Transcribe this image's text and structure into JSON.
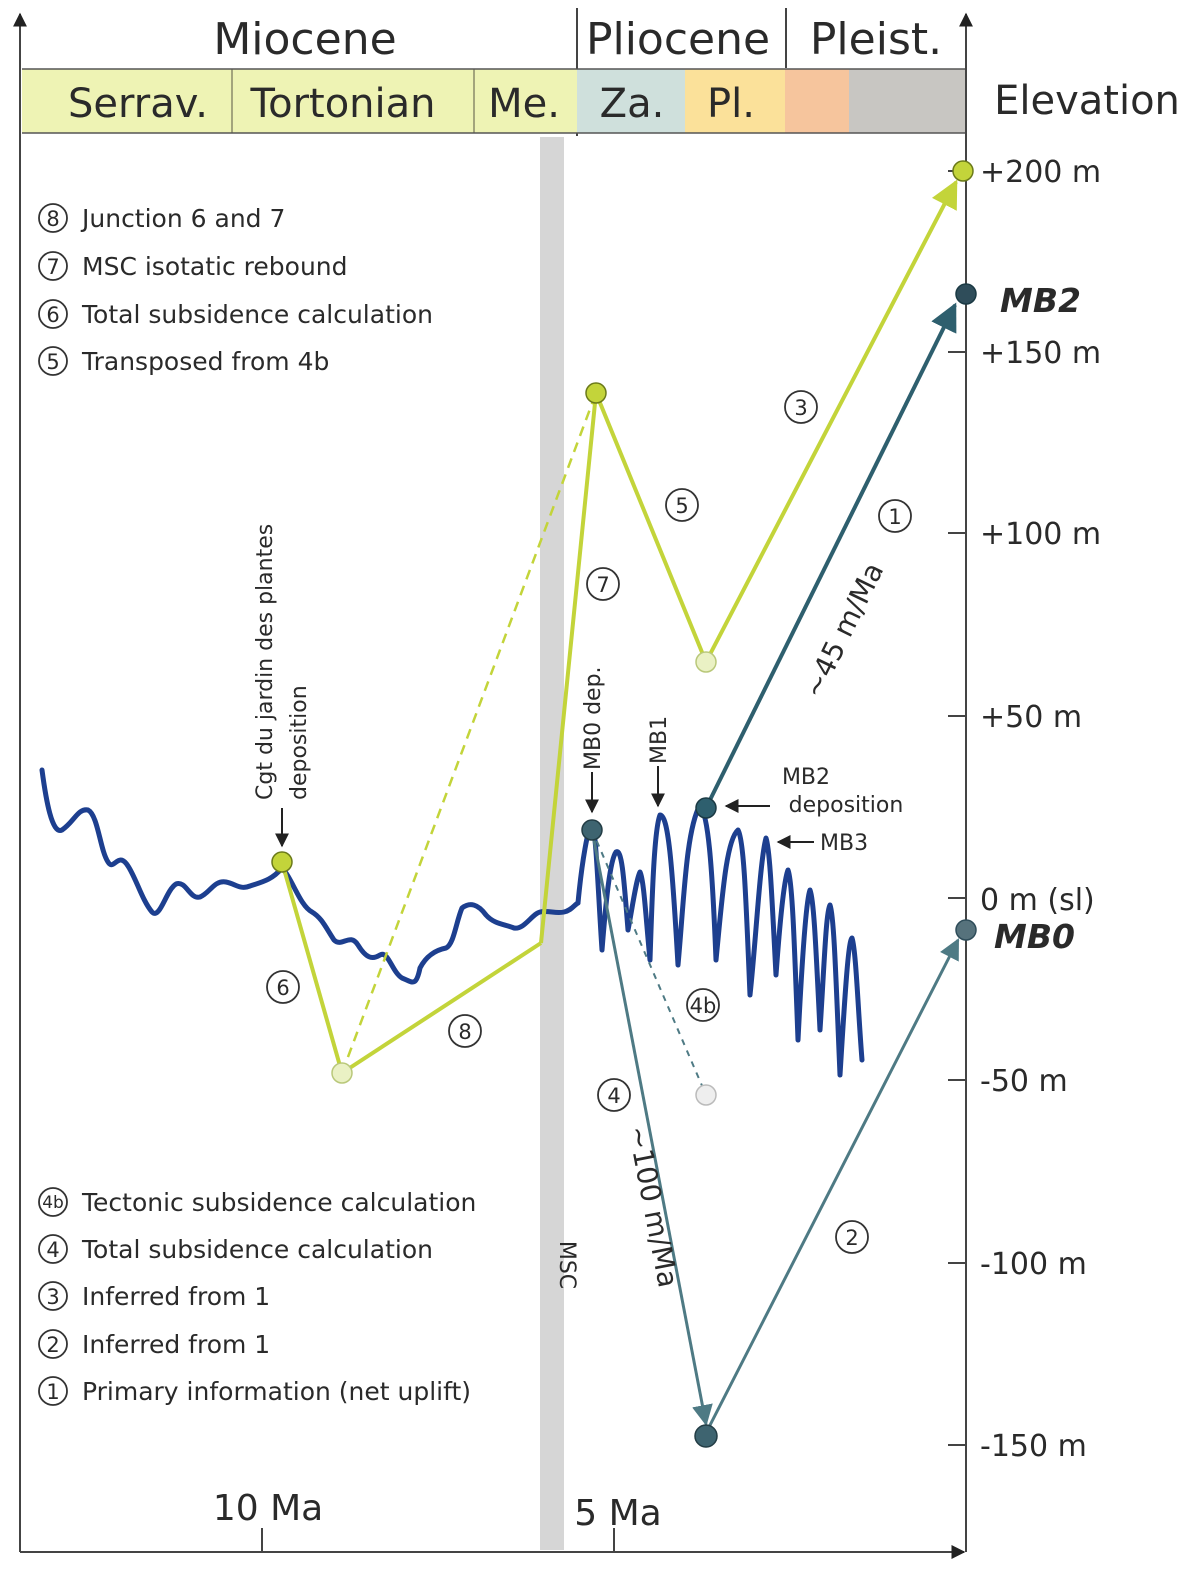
{
  "epochs": [
    {
      "label": "Miocene"
    },
    {
      "label": "Pliocene"
    },
    {
      "label": "Pleist."
    }
  ],
  "stages": [
    {
      "label": "Serrav.",
      "color": "#eef3b4"
    },
    {
      "label": "Tortonian",
      "color": "#eef3b4"
    },
    {
      "label": "Me.",
      "color": "#eef3b4"
    },
    {
      "label": "Za.",
      "color": "#cfe0dc"
    },
    {
      "label": "Pl.",
      "color": "#fbe19a"
    },
    {
      "label": "",
      "color": "#f6c59d"
    },
    {
      "label": "",
      "color": "#c8c6c2"
    }
  ],
  "elevation_header": "Elevation",
  "elevation_ticks": [
    "+200 m",
    "+150 m",
    "+100 m",
    "+50 m",
    "0 m (sl)",
    "-50 m",
    "-100 m",
    "-150 m"
  ],
  "age_labels": [
    "10 Ma",
    "5 Ma"
  ],
  "msc_label": "MSC",
  "markers": {
    "mb2": "MB2",
    "mb0": "MB0"
  },
  "legend_top": [
    {
      "num": "8",
      "text": "Junction 6 and 7"
    },
    {
      "num": "7",
      "text": "MSC isotatic rebound"
    },
    {
      "num": "6",
      "text": "Total subsidence calculation"
    },
    {
      "num": "5",
      "text": "Transposed from 4b"
    }
  ],
  "legend_bottom": [
    {
      "num": "4b",
      "text": "Tectonic subsidence calculation"
    },
    {
      "num": "4",
      "text": "Total subsidence calculation"
    },
    {
      "num": "3",
      "text": "Inferred from 1"
    },
    {
      "num": "2",
      "text": "Inferred from 1"
    },
    {
      "num": "1",
      "text": "Primary information (net uplift)"
    }
  ],
  "annotations": {
    "cgt_line1": "Cgt du jardin des plantes",
    "cgt_line2": "deposition",
    "mb0_dep": "MB0 dep.",
    "mb1": "MB1",
    "mb2_dep_line1": "MB2",
    "mb2_dep_line2": "deposition",
    "mb3": "MB3",
    "rate_up": "~45 m/Ma",
    "rate_down": "~100 m/Ma"
  },
  "path_numbers": [
    "1",
    "2",
    "3",
    "4",
    "4b",
    "5",
    "6",
    "7",
    "8"
  ],
  "colors": {
    "sea_level_curve": "#1d3f8f",
    "lime_path": "#c3d43a",
    "teal_path": "#2e5f6e",
    "msc_band": "#d6d6d6",
    "axis": "#444444"
  }
}
